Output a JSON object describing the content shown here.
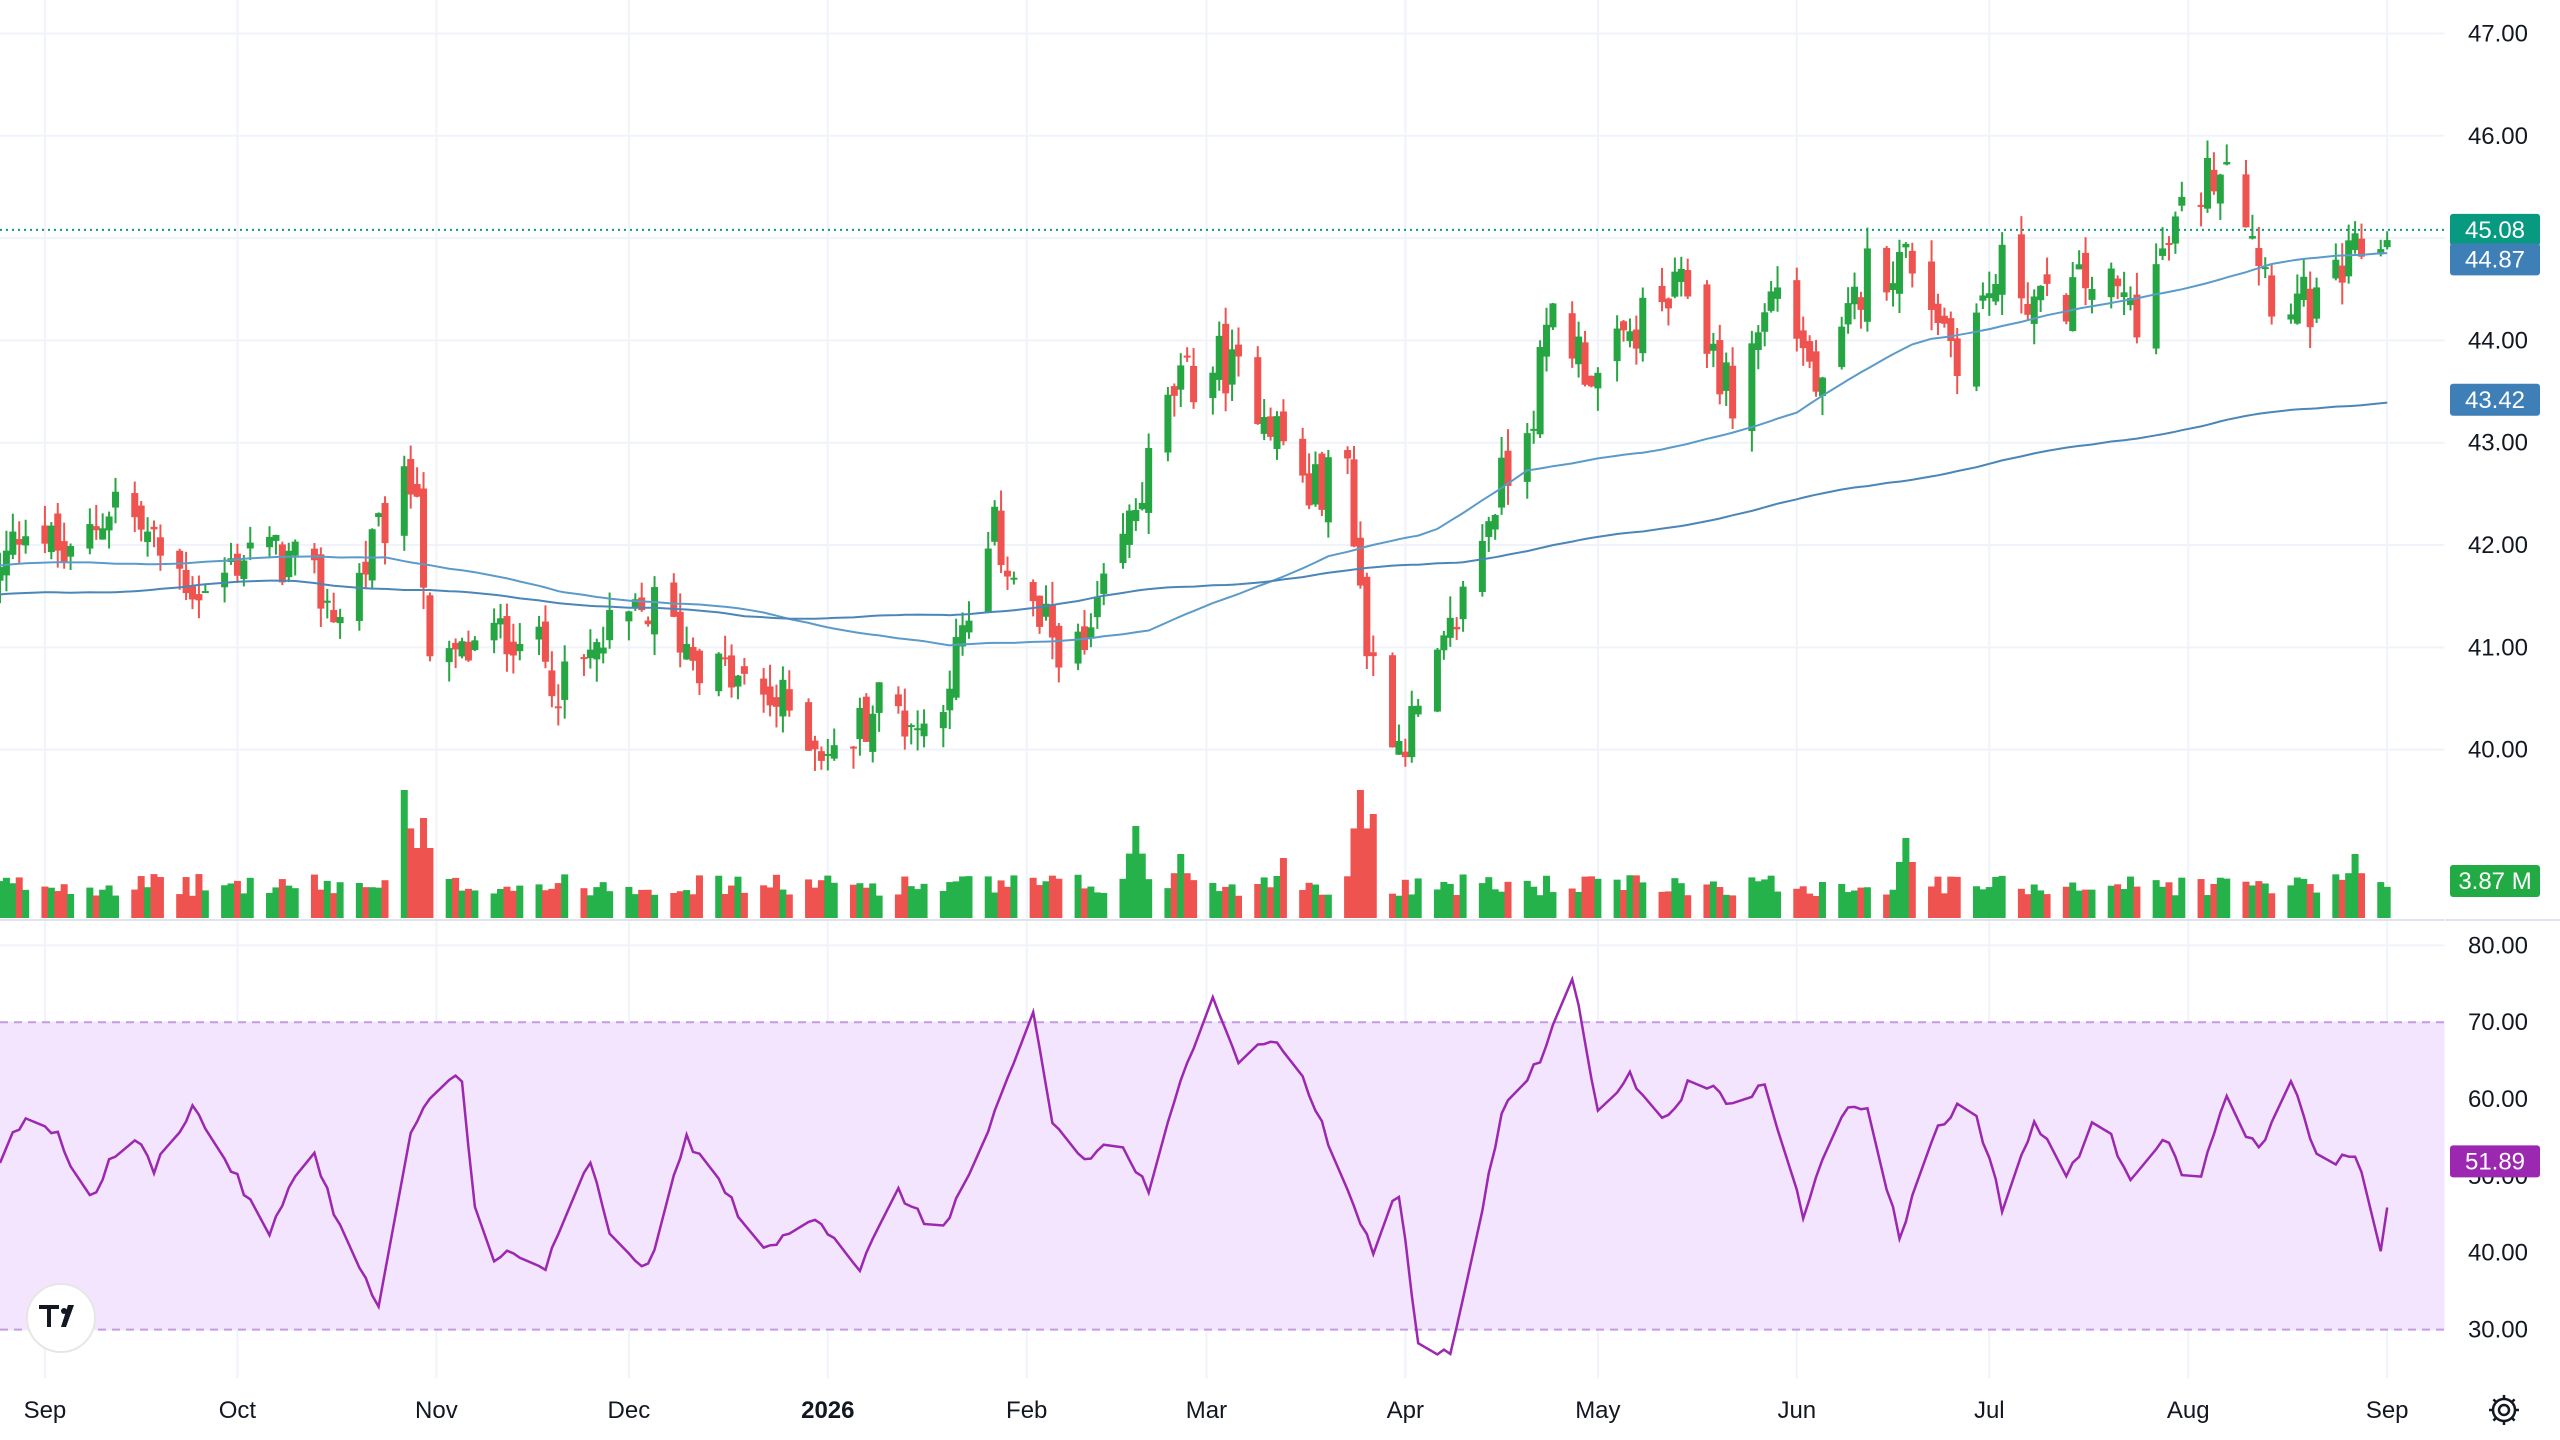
{
  "chart_data": [
    {
      "type": "candlestick",
      "panel": "price",
      "y_axis_ticks": [
        "47.00",
        "46.00",
        "44.00",
        "43.00",
        "42.00",
        "41.00",
        "40.00"
      ],
      "ylim": [
        39.0,
        47.2
      ],
      "last_price": {
        "value": 45.08,
        "label": "45.08"
      },
      "x_axis_labels": [
        "Sep",
        "Oct",
        "Nov",
        "Dec",
        "2026",
        "Feb",
        "Mar",
        "Apr",
        "May",
        "Jun",
        "Jul",
        "Aug",
        "Sep"
      ],
      "bold_x_label": "2026",
      "x_start": "2025-08-25",
      "x_end": "2026-09-03",
      "close_anchors": [
        [
          "2025-08-25",
          41.7
        ],
        [
          "2025-08-29",
          42.3
        ],
        [
          "2025-09-05",
          41.8
        ],
        [
          "2025-09-12",
          42.5
        ],
        [
          "2025-09-19",
          41.9
        ],
        [
          "2025-09-26",
          41.5
        ],
        [
          "2025-10-03",
          42.0
        ],
        [
          "2025-10-10",
          41.8
        ],
        [
          "2025-10-17",
          41.3
        ],
        [
          "2025-10-24",
          42.2
        ],
        [
          "2025-10-29",
          42.7
        ],
        [
          "2025-10-31",
          40.7
        ],
        [
          "2025-11-07",
          41.0
        ],
        [
          "2025-11-14",
          41.2
        ],
        [
          "2025-11-21",
          40.6
        ],
        [
          "2025-11-28",
          41.1
        ],
        [
          "2025-12-05",
          41.4
        ],
        [
          "2025-12-12",
          40.9
        ],
        [
          "2025-12-19",
          40.6
        ],
        [
          "2025-12-26",
          40.4
        ],
        [
          "2026-01-02",
          39.9
        ],
        [
          "2026-01-09",
          40.5
        ],
        [
          "2026-01-16",
          40.2
        ],
        [
          "2026-01-23",
          41.2
        ],
        [
          "2026-01-27",
          42.1
        ],
        [
          "2026-02-03",
          41.2
        ],
        [
          "2026-02-10",
          40.9
        ],
        [
          "2026-02-17",
          42.2
        ],
        [
          "2026-02-24",
          43.5
        ],
        [
          "2026-03-03",
          43.8
        ],
        [
          "2026-03-10",
          43.4
        ],
        [
          "2026-03-17",
          42.5
        ],
        [
          "2026-03-23",
          42.8
        ],
        [
          "2026-03-26",
          41.0
        ],
        [
          "2026-03-31",
          40.1
        ],
        [
          "2026-04-03",
          40.3
        ],
        [
          "2026-04-07",
          40.9
        ],
        [
          "2026-04-14",
          42.3
        ],
        [
          "2026-04-21",
          43.4
        ],
        [
          "2026-04-24",
          44.3
        ],
        [
          "2026-05-01",
          43.6
        ],
        [
          "2026-05-08",
          44.2
        ],
        [
          "2026-05-15",
          44.5
        ],
        [
          "2026-05-22",
          43.4
        ],
        [
          "2026-05-29",
          44.6
        ],
        [
          "2026-06-05",
          43.4
        ],
        [
          "2026-06-12",
          44.7
        ],
        [
          "2026-06-19",
          44.8
        ],
        [
          "2026-06-26",
          43.9
        ],
        [
          "2026-07-03",
          44.7
        ],
        [
          "2026-07-10",
          44.3
        ],
        [
          "2026-07-17",
          44.6
        ],
        [
          "2026-07-24",
          44.3
        ],
        [
          "2026-07-31",
          45.2
        ],
        [
          "2026-08-07",
          45.9
        ],
        [
          "2026-08-14",
          44.5
        ],
        [
          "2026-08-21",
          44.3
        ],
        [
          "2026-08-27",
          44.8
        ],
        [
          "2026-09-02",
          45.08
        ]
      ],
      "moving_averages": [
        {
          "name": "",
          "color": "#5b9bc9",
          "last_value": 44.87,
          "label": "44.87",
          "anchors": [
            [
              "2025-08-25",
              41.8
            ],
            [
              "2025-10-01",
              41.85
            ],
            [
              "2025-10-24",
              41.9
            ],
            [
              "2025-11-20",
              41.55
            ],
            [
              "2025-12-20",
              41.35
            ],
            [
              "2026-01-20",
              41.0
            ],
            [
              "2026-02-20",
              41.15
            ],
            [
              "2026-03-20",
              41.9
            ],
            [
              "2026-04-05",
              42.1
            ],
            [
              "2026-04-20",
              42.75
            ],
            [
              "2026-05-10",
              42.9
            ],
            [
              "2026-06-01",
              43.3
            ],
            [
              "2026-06-20",
              44.0
            ],
            [
              "2026-07-20",
              44.35
            ],
            [
              "2026-08-15",
              44.75
            ],
            [
              "2026-09-02",
              44.87
            ]
          ]
        },
        {
          "name": "",
          "color": "#4a86b8",
          "last_value": 43.42,
          "label": "43.42",
          "anchors": [
            [
              "2025-08-25",
              41.5
            ],
            [
              "2025-10-10",
              41.65
            ],
            [
              "2025-11-20",
              41.45
            ],
            [
              "2025-12-20",
              41.3
            ],
            [
              "2026-01-20",
              41.3
            ],
            [
              "2026-02-20",
              41.55
            ],
            [
              "2026-03-25",
              41.75
            ],
            [
              "2026-04-10",
              41.85
            ],
            [
              "2026-05-10",
              42.15
            ],
            [
              "2026-06-10",
              42.55
            ],
            [
              "2026-07-10",
              42.9
            ],
            [
              "2026-08-10",
              43.25
            ],
            [
              "2026-09-02",
              43.42
            ]
          ]
        }
      ],
      "volume": {
        "last_value": "3.87 M",
        "spikes": [
          [
            "2025-10-27",
            3.2
          ],
          [
            "2025-10-30",
            2.5
          ],
          [
            "2026-02-18",
            2.3
          ],
          [
            "2026-02-25",
            1.6
          ],
          [
            "2026-03-13",
            1.5
          ],
          [
            "2026-03-25",
            3.2
          ],
          [
            "2026-03-27",
            2.6
          ],
          [
            "2026-06-18",
            2.0
          ],
          [
            "2026-08-27",
            1.6
          ]
        ]
      },
      "colors": {
        "up": "#26a642",
        "down": "#ef5350",
        "volume_up": "#26b24a",
        "volume_down": "#ef5350",
        "last_price_badge": "#089981",
        "ma_badge": "#3d7fb6",
        "volume_badge": "#22ab45"
      }
    },
    {
      "type": "line",
      "panel": "rsi",
      "y_axis_ticks": [
        "80.00",
        "70.00",
        "60.00",
        "40.00",
        "30.00"
      ],
      "ylim": [
        25,
        82
      ],
      "band": [
        30,
        70
      ],
      "last_value": {
        "value": 51.89,
        "label": "51.89"
      },
      "line_color": "#9c27b0",
      "band_color": "#f3e5fd",
      "anchors": [
        [
          "2025-08-25",
          52
        ],
        [
          "2025-08-29",
          58
        ],
        [
          "2025-09-03",
          55
        ],
        [
          "2025-09-08",
          47
        ],
        [
          "2025-09-14",
          56
        ],
        [
          "2025-09-18",
          51
        ],
        [
          "2025-09-24",
          59
        ],
        [
          "2025-09-30",
          51
        ],
        [
          "2025-10-06",
          42
        ],
        [
          "2025-10-12",
          55
        ],
        [
          "2025-10-18",
          41
        ],
        [
          "2025-10-23",
          33
        ],
        [
          "2025-10-28",
          55
        ],
        [
          "2025-11-01",
          62
        ],
        [
          "2025-11-05",
          63
        ],
        [
          "2025-11-08",
          37
        ],
        [
          "2025-11-12",
          40
        ],
        [
          "2025-11-18",
          38
        ],
        [
          "2025-11-25",
          52
        ],
        [
          "2025-11-28",
          42
        ],
        [
          "2025-12-04",
          38
        ],
        [
          "2025-12-10",
          55
        ],
        [
          "2025-12-16",
          48
        ],
        [
          "2025-12-22",
          40
        ],
        [
          "2025-12-30",
          45
        ],
        [
          "2026-01-06",
          38
        ],
        [
          "2026-01-12",
          48
        ],
        [
          "2026-01-18",
          42
        ],
        [
          "2026-01-23",
          50
        ],
        [
          "2026-01-29",
          62
        ],
        [
          "2026-02-02",
          71
        ],
        [
          "2026-02-05",
          57
        ],
        [
          "2026-02-10",
          52
        ],
        [
          "2026-02-15",
          55
        ],
        [
          "2026-02-20",
          48
        ],
        [
          "2026-02-25",
          62
        ],
        [
          "2026-03-02",
          74
        ],
        [
          "2026-03-06",
          65
        ],
        [
          "2026-03-11",
          68
        ],
        [
          "2026-03-16",
          63
        ],
        [
          "2026-03-22",
          50
        ],
        [
          "2026-03-27",
          40
        ],
        [
          "2026-03-31",
          48
        ],
        [
          "2026-04-03",
          28
        ],
        [
          "2026-04-08",
          27
        ],
        [
          "2026-04-12",
          42
        ],
        [
          "2026-04-16",
          58
        ],
        [
          "2026-04-22",
          65
        ],
        [
          "2026-04-27",
          76
        ],
        [
          "2026-05-01",
          59
        ],
        [
          "2026-05-06",
          63
        ],
        [
          "2026-05-11",
          57
        ],
        [
          "2026-05-16",
          63
        ],
        [
          "2026-05-22",
          59
        ],
        [
          "2026-05-27",
          62
        ],
        [
          "2026-06-02",
          45
        ],
        [
          "2026-06-07",
          58
        ],
        [
          "2026-06-12",
          59
        ],
        [
          "2026-06-17",
          42
        ],
        [
          "2026-06-22",
          55
        ],
        [
          "2026-06-28",
          61
        ],
        [
          "2026-07-03",
          46
        ],
        [
          "2026-07-08",
          57
        ],
        [
          "2026-07-13",
          50
        ],
        [
          "2026-07-18",
          58
        ],
        [
          "2026-07-23",
          50
        ],
        [
          "2026-07-28",
          55
        ],
        [
          "2026-08-02",
          48
        ],
        [
          "2026-08-07",
          60
        ],
        [
          "2026-08-12",
          53
        ],
        [
          "2026-08-17",
          62
        ],
        [
          "2026-08-22",
          51
        ],
        [
          "2026-08-27",
          53
        ],
        [
          "2026-08-31",
          40
        ],
        [
          "2026-09-02",
          51.89
        ]
      ]
    }
  ],
  "ui": {
    "logo_text": "TV",
    "settings_icon": "gear-icon"
  }
}
